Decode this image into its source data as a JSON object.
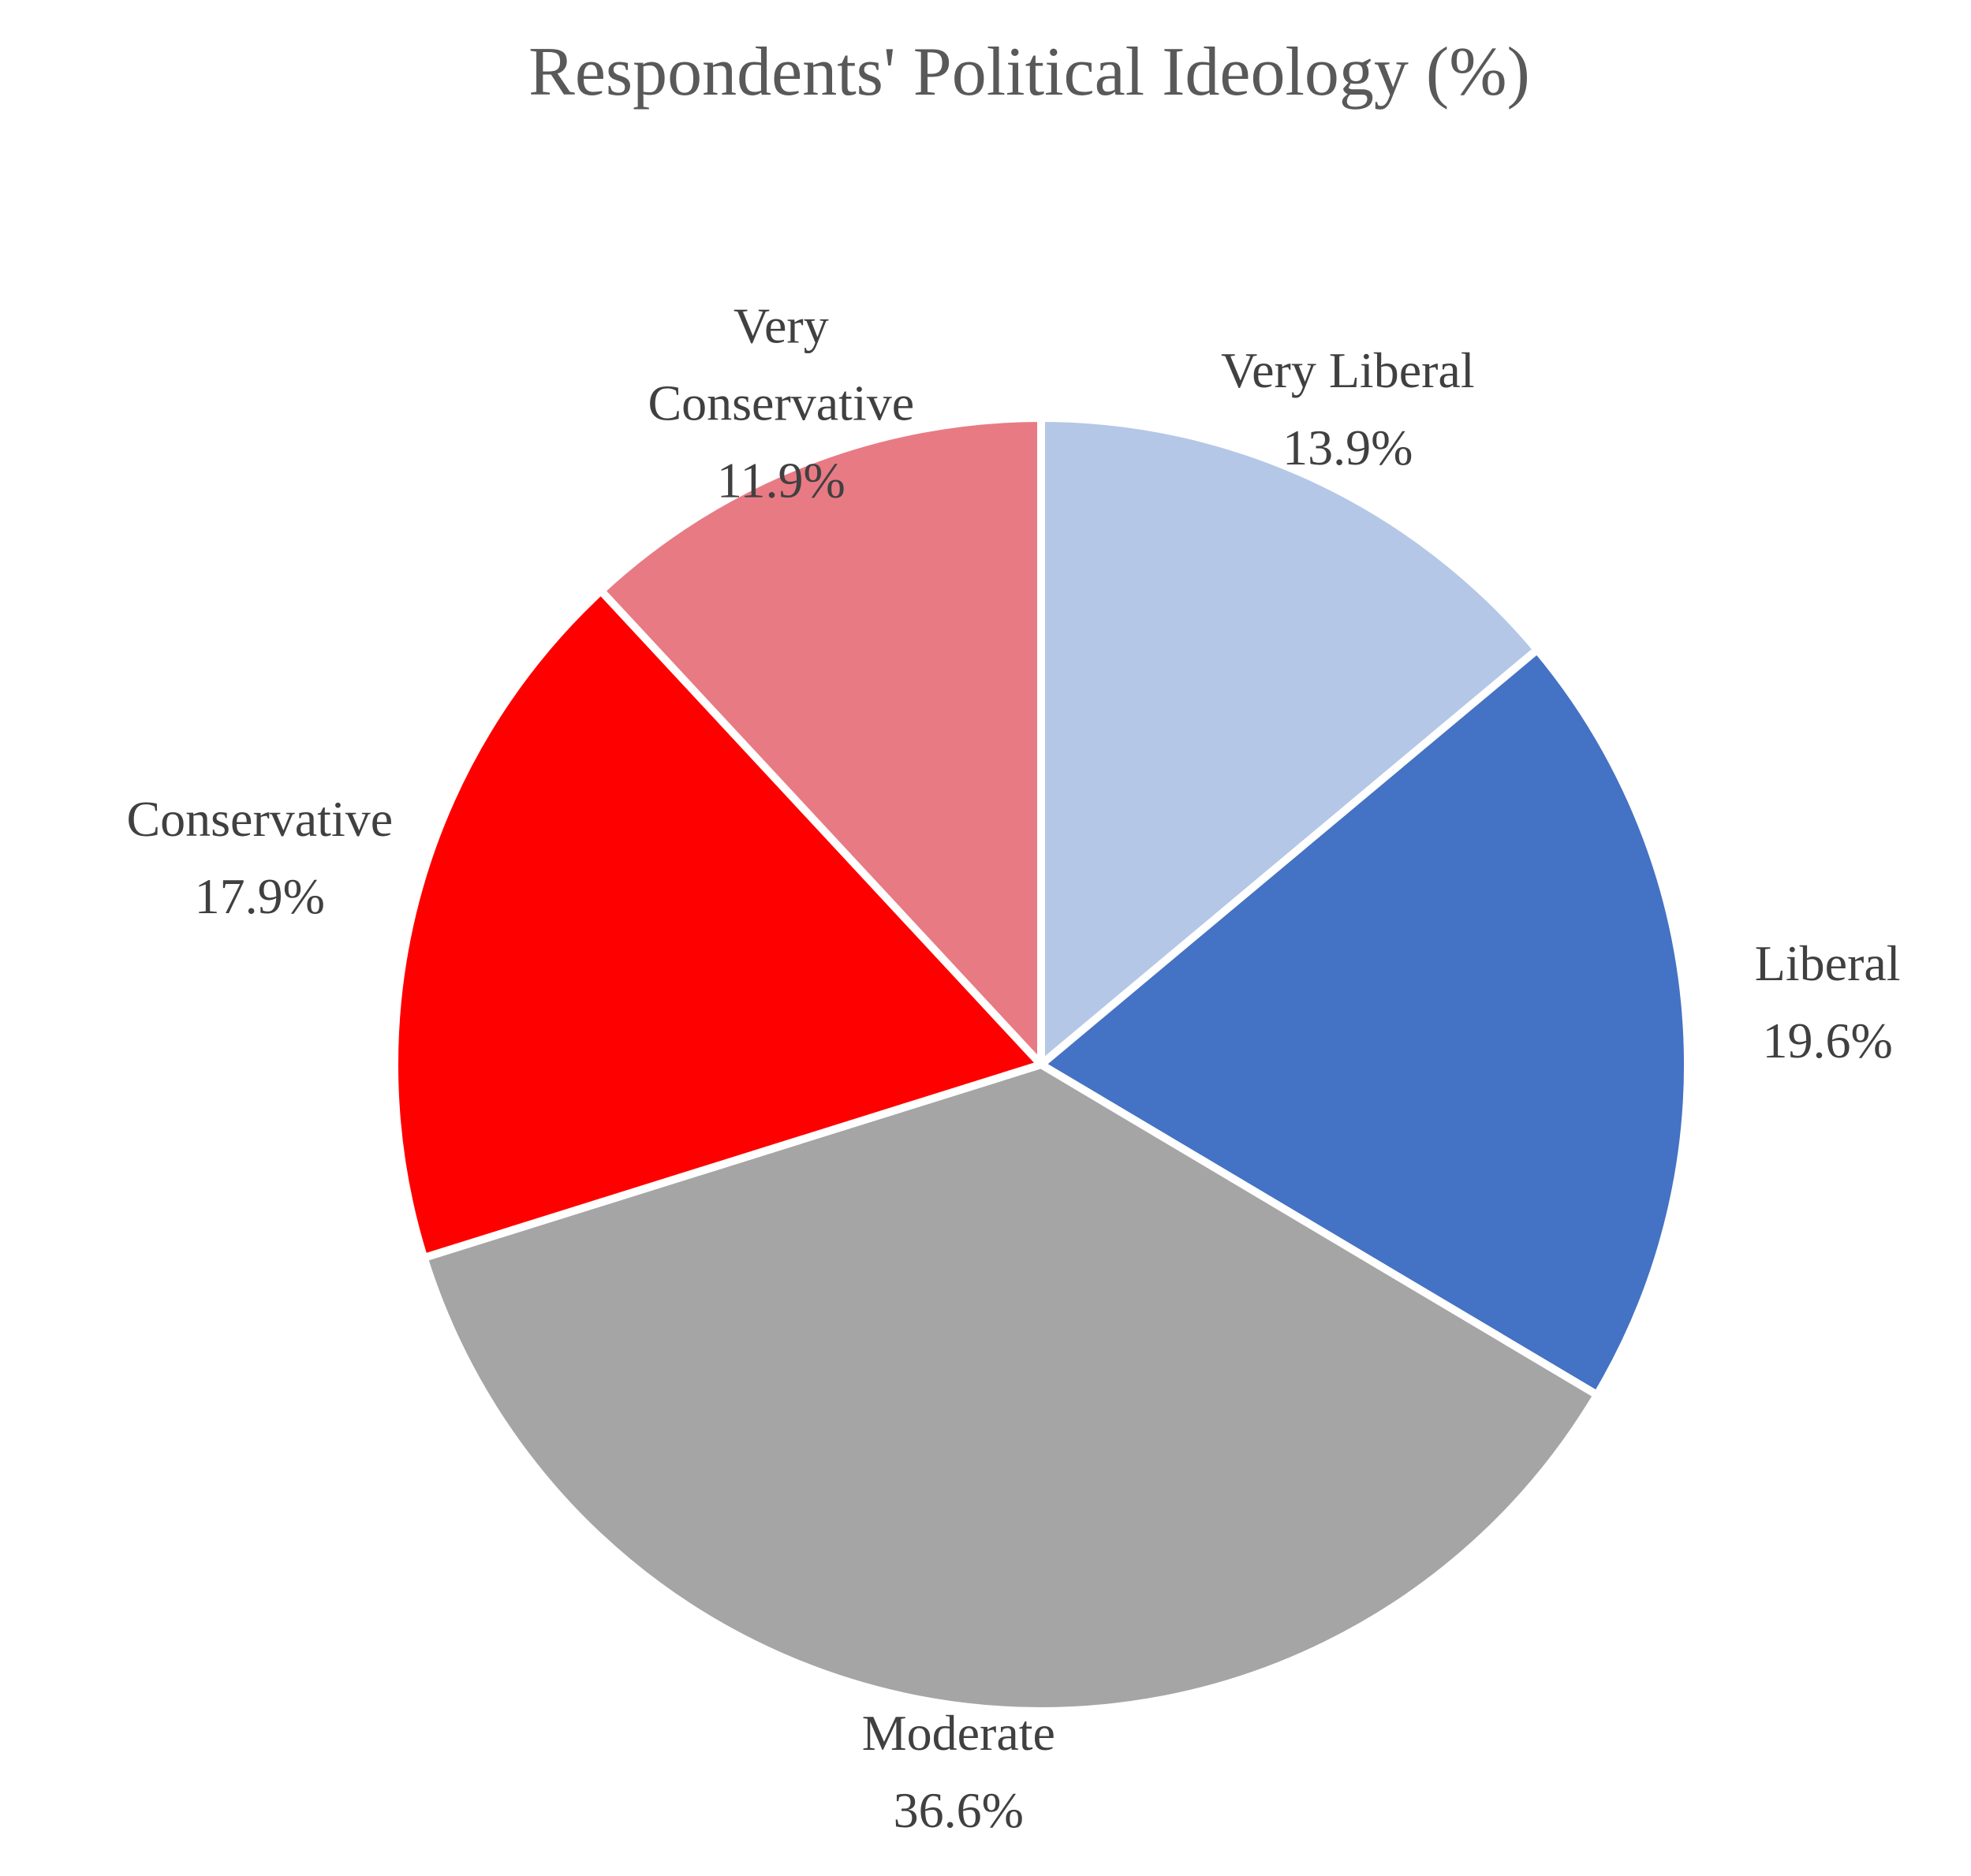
{
  "chart_data": {
    "type": "pie",
    "title": "Respondents' Political Ideology (%)",
    "start_angle_deg": 0,
    "direction": "clockwise",
    "slices": [
      {
        "label": "Very Liberal",
        "label_lines": [
          "Very Liberal"
        ],
        "value": 13.9,
        "value_label": "13.9%",
        "color": "#B4C7E7"
      },
      {
        "label": "Liberal",
        "label_lines": [
          "Liberal"
        ],
        "value": 19.6,
        "value_label": "19.6%",
        "color": "#4472C4"
      },
      {
        "label": "Moderate",
        "label_lines": [
          "Moderate"
        ],
        "value": 36.6,
        "value_label": "36.6%",
        "color": "#A5A5A5"
      },
      {
        "label": "Conservative",
        "label_lines": [
          "Conservative"
        ],
        "value": 17.9,
        "value_label": "17.9%",
        "color": "#FF0000"
      },
      {
        "label": "Very Conservative",
        "label_lines": [
          "Very",
          "Conservative"
        ],
        "value": 11.9,
        "value_label": "11.9%",
        "color": "#E87A84"
      }
    ]
  }
}
